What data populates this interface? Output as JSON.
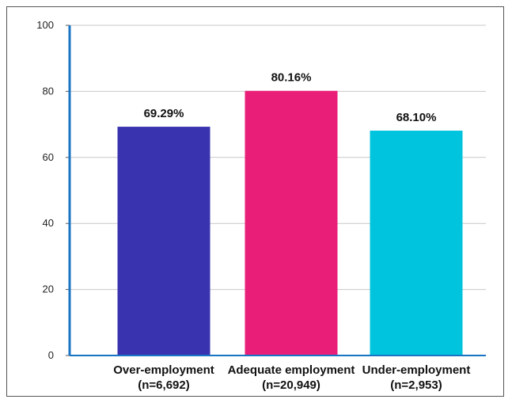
{
  "chart_data": {
    "type": "bar",
    "categories": [
      "Over-employment",
      "Adequate employment",
      "Under-employment"
    ],
    "category_counts": [
      "(n=6,692)",
      "(n=20,949)",
      "(n=2,953)"
    ],
    "values": [
      69.29,
      80.16,
      68.1
    ],
    "value_labels": [
      "69.29%",
      "80.16%",
      "68.10%"
    ],
    "colors": [
      "#3a33b0",
      "#e91e78",
      "#00c4de"
    ],
    "y_ticks": [
      "0",
      "20",
      "40",
      "60",
      "80",
      "100"
    ],
    "ylim": [
      0,
      100
    ],
    "grid": true,
    "axis_color": "#1a74c4"
  }
}
